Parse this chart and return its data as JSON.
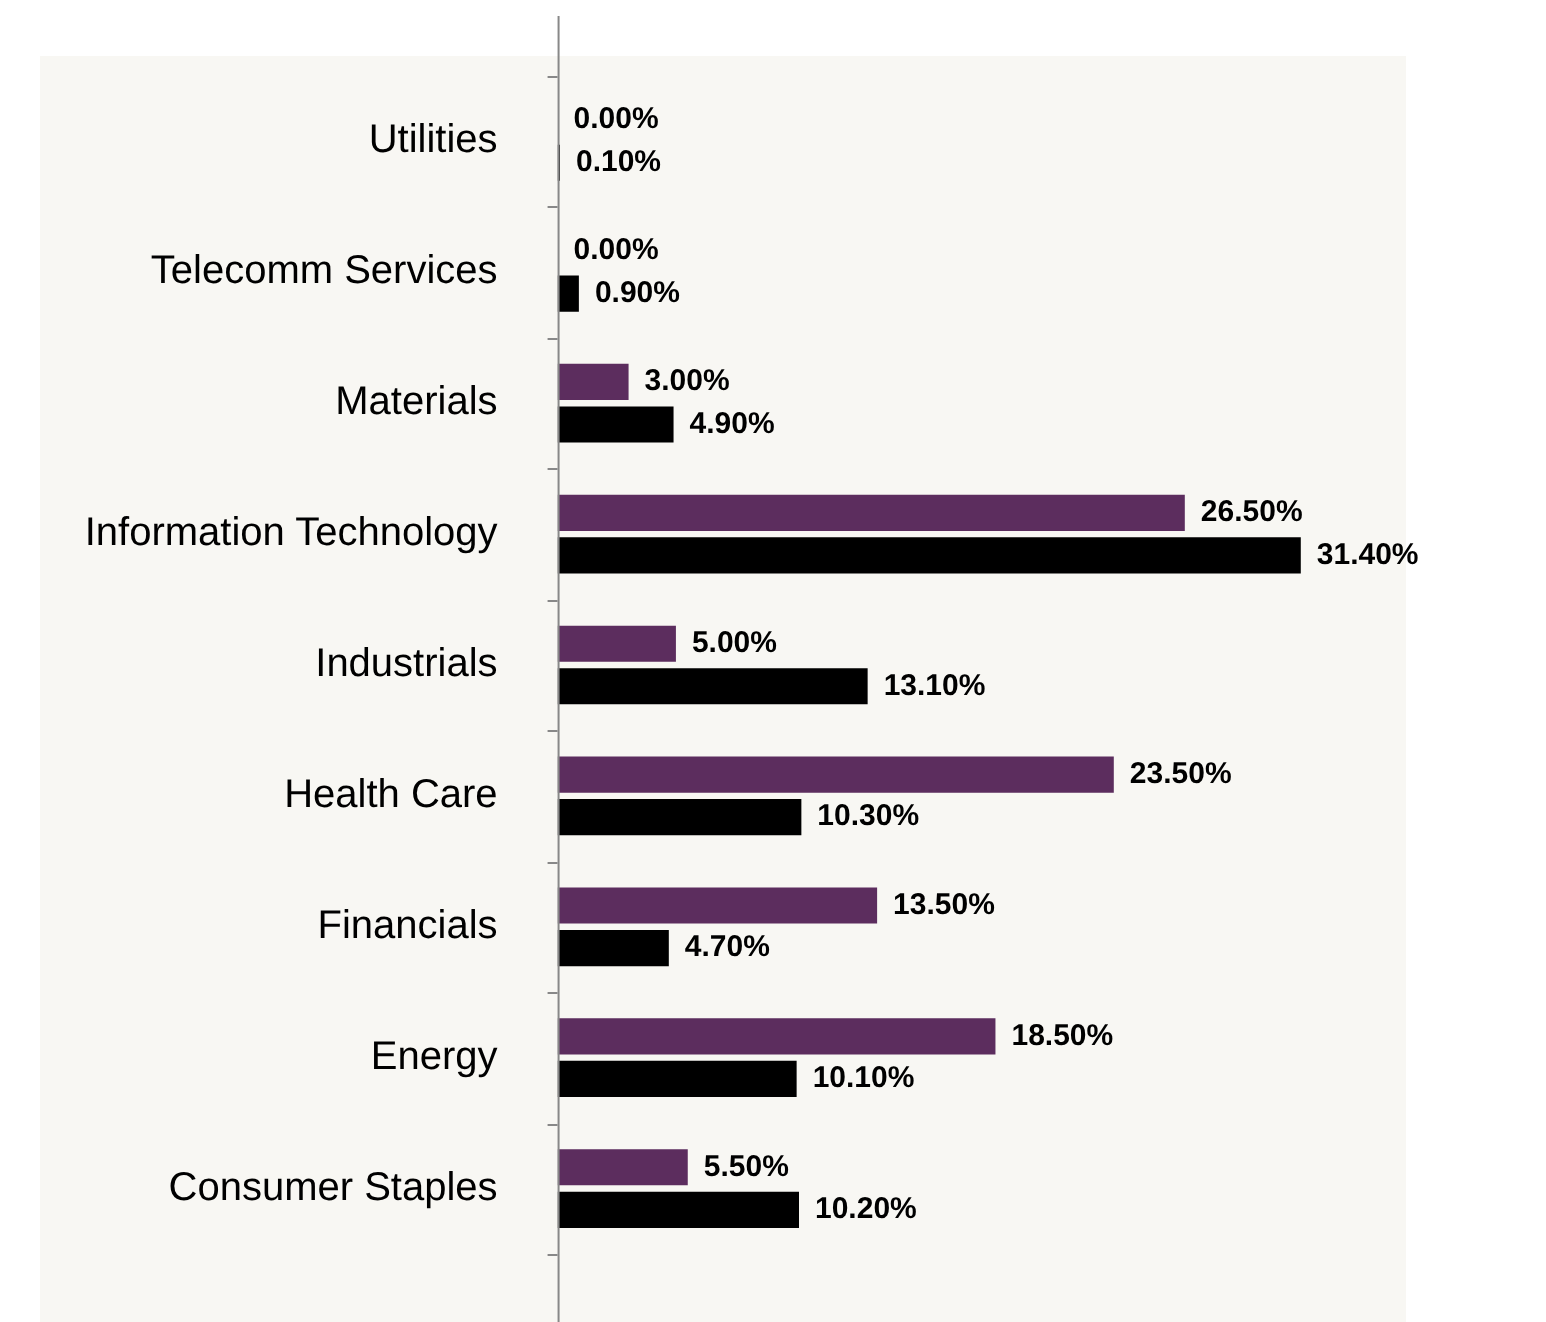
{
  "chart_data": {
    "type": "bar",
    "orientation": "horizontal",
    "categories": [
      "Utilities",
      "Telecomm Services",
      "Materials",
      "Information Technology",
      "Industrials",
      "Health Care",
      "Financials",
      "Energy",
      "Consumer Staples"
    ],
    "series": [
      {
        "color": "#5c2d5e",
        "values": [
          0,
          0,
          3,
          26.5,
          5,
          23.5,
          13.5,
          18.5,
          5.5
        ],
        "value_labels": [
          "0.00%",
          "0.00%",
          "3.00%",
          "26.50%",
          "5.00%",
          "23.50%",
          "13.50%",
          "18.50%",
          "5.50%"
        ]
      },
      {
        "color": "#000000",
        "values": [
          0.1,
          0.9,
          4.9,
          31.4,
          13.1,
          10.3,
          4.7,
          10.1,
          10.2
        ],
        "value_labels": [
          "0.10%",
          "0.90%",
          "4.90%",
          "31.40%",
          "13.10%",
          "10.30%",
          "4.70%",
          "10.10%",
          "10.20%"
        ]
      }
    ]
  }
}
